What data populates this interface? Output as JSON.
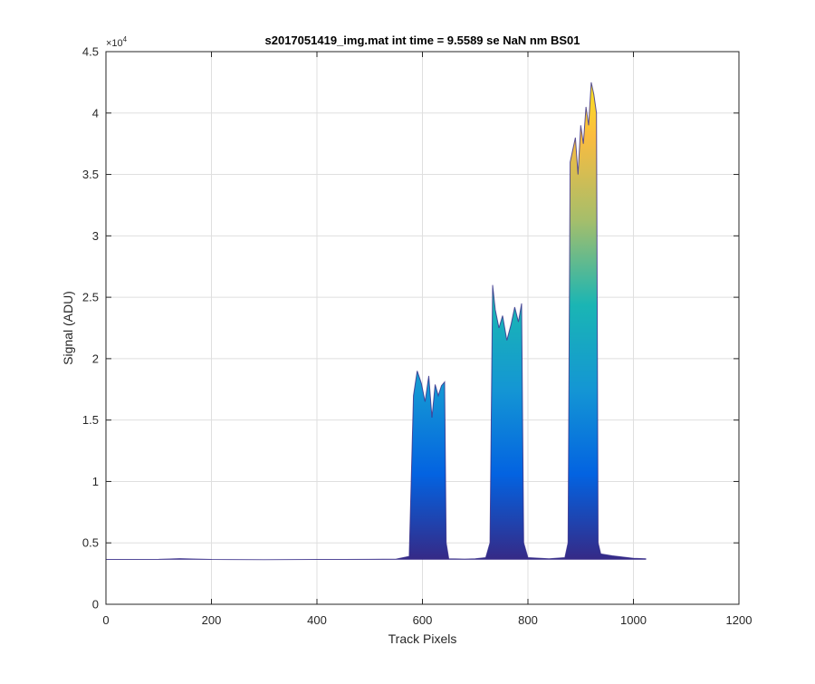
{
  "chart_data": {
    "type": "area",
    "title": "s2017051419_img.mat int time = 9.5589 se  NaN nm BS01",
    "xlabel": "Track Pixels",
    "ylabel": "Signal (ADU)",
    "xlim": [
      0,
      1200
    ],
    "ylim": [
      0,
      45000
    ],
    "x_ticks": [
      0,
      200,
      400,
      600,
      800,
      1000,
      1200
    ],
    "x_tick_labels": [
      "0",
      "200",
      "400",
      "600",
      "800",
      "1000",
      "1200"
    ],
    "y_ticks": [
      0,
      5000,
      10000,
      15000,
      20000,
      25000,
      30000,
      35000,
      40000,
      45000
    ],
    "y_tick_labels": [
      "0",
      "0.5",
      "1",
      "1.5",
      "2",
      "2.5",
      "3",
      "3.5",
      "4",
      "4.5"
    ],
    "y_exponent": {
      "base": "×10",
      "power": "4"
    },
    "grid": true,
    "colormap": "parula",
    "colormap_stops": [
      "#352a87",
      "#0363e1",
      "#1496d4",
      "#1ab5b4",
      "#a5be6b",
      "#fbbc3f",
      "#f9fb0e"
    ],
    "colormap_range": [
      3700,
      45000
    ],
    "series": [
      {
        "x": [
          0,
          100,
          140,
          200,
          300,
          400,
          500,
          550,
          575,
          583,
          590,
          598,
          605,
          612,
          618,
          624,
          630,
          636,
          642,
          645,
          650,
          680,
          700,
          720,
          728,
          733,
          738,
          745,
          752,
          760,
          768,
          775,
          782,
          788,
          792,
          800,
          840,
          870,
          876,
          880,
          885,
          890,
          895,
          900,
          905,
          910,
          915,
          920,
          925,
          930,
          933,
          938,
          960,
          1000,
          1024
        ],
        "y": [
          3650,
          3660,
          3720,
          3650,
          3640,
          3650,
          3660,
          3680,
          3900,
          17000,
          19000,
          18000,
          16500,
          18600,
          15200,
          17900,
          17000,
          17800,
          18100,
          5000,
          3700,
          3680,
          3700,
          3800,
          5000,
          26000,
          24000,
          22500,
          23500,
          21500,
          22800,
          24200,
          23000,
          24500,
          5000,
          3800,
          3700,
          3800,
          5000,
          36000,
          37000,
          38000,
          35000,
          39000,
          37500,
          40500,
          39000,
          42500,
          41500,
          40000,
          5000,
          4100,
          3950,
          3750,
          3700
        ]
      }
    ]
  }
}
